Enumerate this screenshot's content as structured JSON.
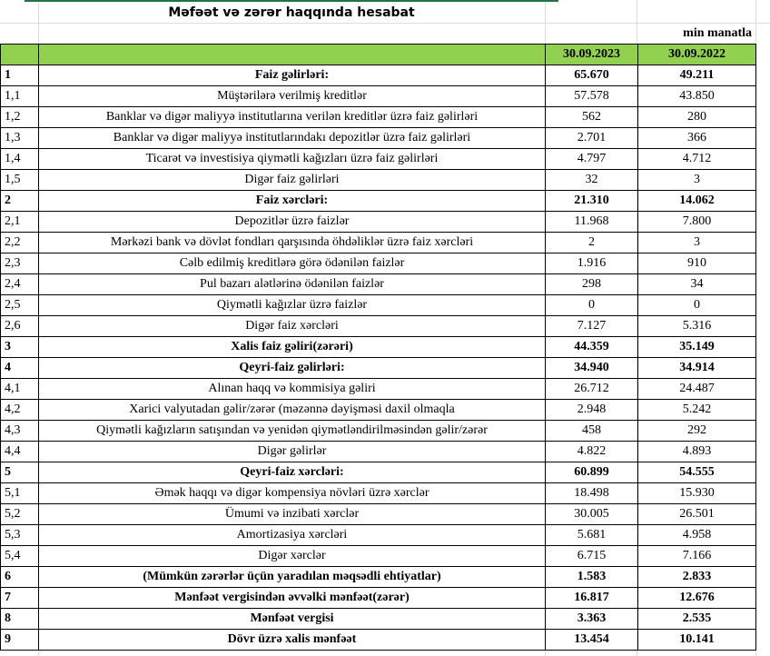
{
  "title": "Məfəət və zərər haqqında hesabat",
  "unit": "min manatla",
  "header": {
    "col1": "30.09.2023",
    "col2": "30.09.2022"
  },
  "header_color": "#92d050",
  "rows": [
    {
      "n": "1",
      "label": "Faiz gəlirləri:",
      "v1": "65.670",
      "v2": "49.211",
      "bold": true
    },
    {
      "n": "1,1",
      "label": "Müştərilərə verilmiş kreditlər",
      "v1": "57.578",
      "v2": "43.850"
    },
    {
      "n": "1,2",
      "label": "Banklar və digər maliyyə institutlarına verilən kreditlər üzrə faiz gəlirləri",
      "v1": "562",
      "v2": "280"
    },
    {
      "n": "1,3",
      "label": "Banklar və digər maliyyə institutlarındakı depozitlər üzrə faiz gəlirləri",
      "v1": "2.701",
      "v2": "366"
    },
    {
      "n": "1,4",
      "label": "Ticarət və investisiya qiymətli kağızları üzrə faiz gəlirləri",
      "v1": "4.797",
      "v2": "4.712"
    },
    {
      "n": "1,5",
      "label": "Digər faiz gəlirləri",
      "v1": "32",
      "v2": "3"
    },
    {
      "n": "2",
      "label": "Faiz xərcləri:",
      "v1": "21.310",
      "v2": "14.062",
      "bold": true
    },
    {
      "n": "2,1",
      "label": "Depozitlər üzrə faizlər",
      "v1": "11.968",
      "v2": "7.800"
    },
    {
      "n": "2,2",
      "label": "Mərkəzi bank və dövlət fondları qarşısında öhdəliklər üzrə faiz xərcləri",
      "v1": "2",
      "v2": "3"
    },
    {
      "n": "2,3",
      "label": "Cəlb edilmiş kreditlərə görə ödənilən faizlər",
      "v1": "1.916",
      "v2": "910"
    },
    {
      "n": "2,4",
      "label": "Pul bazarı alətlərinə ödənilən faizlər",
      "v1": "298",
      "v2": "34"
    },
    {
      "n": "2,5",
      "label": "Qiymətli kağızlar üzrə faizlər",
      "v1": "0",
      "v2": "0"
    },
    {
      "n": "2,6",
      "label": "Digər faiz xərcləri",
      "v1": "7.127",
      "v2": "5.316"
    },
    {
      "n": "3",
      "label": "Xalis faiz gəliri(zərəri)",
      "v1": "44.359",
      "v2": "35.149",
      "bold": true
    },
    {
      "n": "4",
      "label": "Qeyri-faiz gəlirləri:",
      "v1": "34.940",
      "v2": "34.914",
      "bold": true
    },
    {
      "n": "4,1",
      "label": "Alınan haqq və kommisiya gəliri",
      "v1": "26.712",
      "v2": "24.487"
    },
    {
      "n": "4,2",
      "label": "Xarici valyutadan gəlir/zərər (məzənnə dəyişməsi daxil olmaqla",
      "v1": "2.948",
      "v2": "5.242"
    },
    {
      "n": "4,3",
      "label": "Qiymətli kağızların satışından və yenidən qiymətləndirilməsindən gəlir/zərər",
      "v1": "458",
      "v2": "292"
    },
    {
      "n": "4,4",
      "label": "Digər gəlirlər",
      "v1": "4.822",
      "v2": "4.893"
    },
    {
      "n": "5",
      "label": "Qeyri-faiz xərcləri:",
      "v1": "60.899",
      "v2": "54.555",
      "bold": true
    },
    {
      "n": "5,1",
      "label": "Əmək haqqı və digər kompensiya növləri üzrə xərclər",
      "v1": "18.498",
      "v2": "15.930"
    },
    {
      "n": "5,2",
      "label": "Ümumi və inzibati xərclər",
      "v1": "30.005",
      "v2": "26.501"
    },
    {
      "n": "5,3",
      "label": "Amortizasiya xərcləri",
      "v1": "5.681",
      "v2": "4.958"
    },
    {
      "n": "5,4",
      "label": "Digər xərclər",
      "v1": "6.715",
      "v2": "7.166"
    },
    {
      "n": "6",
      "label": "(Mümkün zərərlər üçün yaradılan məqsədli ehtiyatlar)",
      "v1": "1.583",
      "v2": "2.833",
      "bold": true
    },
    {
      "n": "7",
      "label": "Mənfəət vergisindən əvvəlki mənfəət(zərər)",
      "v1": "16.817",
      "v2": "12.676",
      "bold": true
    },
    {
      "n": "8",
      "label": "Mənfəət vergisi",
      "v1": "3.363",
      "v2": "2.535",
      "bold": true
    },
    {
      "n": "9",
      "label": "Dövr üzrə xalis mənfəət",
      "v1": "13.454",
      "v2": "10.141",
      "bold": true
    }
  ]
}
